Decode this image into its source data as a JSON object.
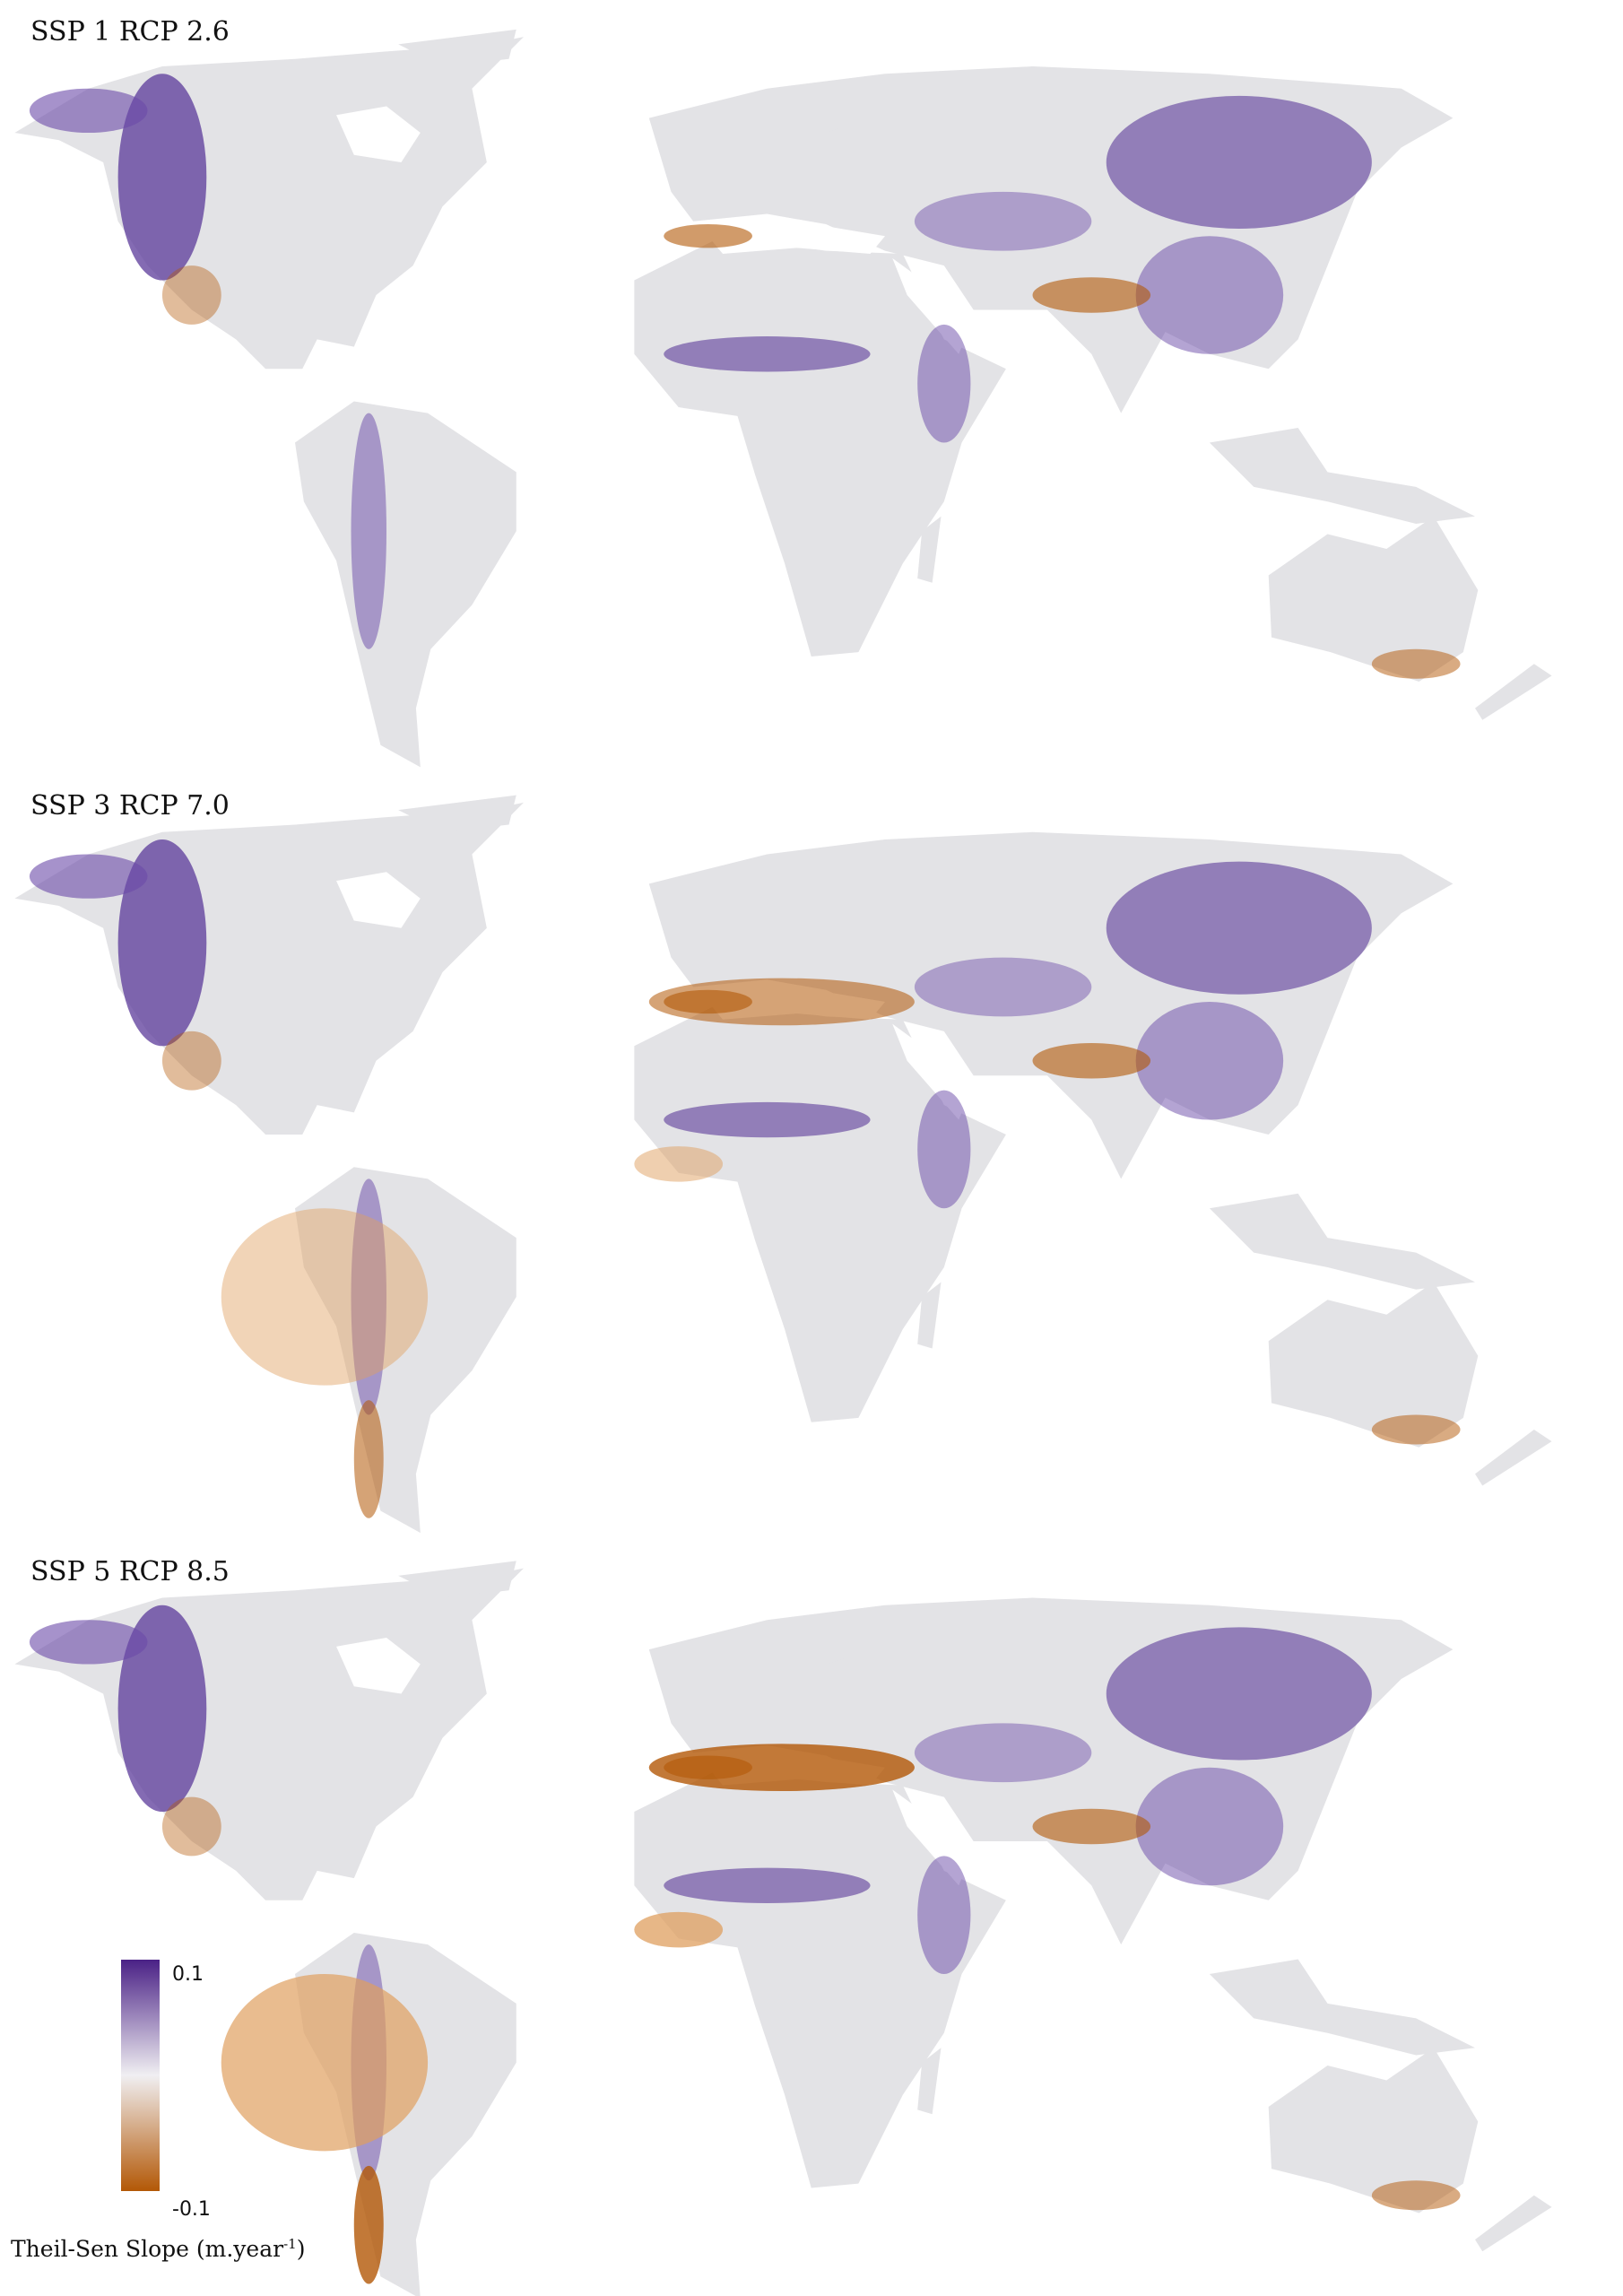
{
  "panels": [
    {
      "title": "SSP 1 RCP 2.6"
    },
    {
      "title": "SSP 3 RCP 7.0"
    },
    {
      "title": "SSP 5 RCP 8.5"
    }
  ],
  "legend": {
    "max": 0.1,
    "min": -0.1,
    "max_color": "#4a2186",
    "mid_color": "#f0eff2",
    "min_color": "#b35806",
    "title": "Theil-Sen Slope (m.year",
    "title_superscript": "-1",
    "title_end": ")"
  }
}
